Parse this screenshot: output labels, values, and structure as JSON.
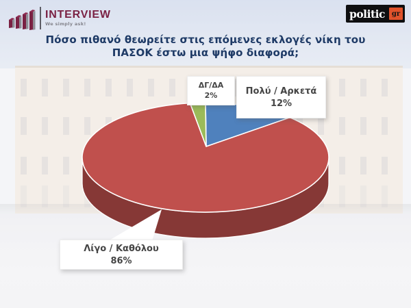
{
  "header": {
    "interview": {
      "brand": "INTERVIEW",
      "tagline": "We simply ask!"
    },
    "politic": {
      "brand": "politic",
      "suffix": "gr"
    }
  },
  "title": {
    "line1": "Πόσο πιθανό θεωρείτε στις επόμενες εκλογές νίκη του",
    "line2": "ΠΑΣΟΚ έστω μια ψήφο διαφορά;"
  },
  "chart_data": {
    "type": "pie",
    "style": "3d",
    "title": "Πόσο πιθανό θεωρείτε στις επόμενες εκλογές νίκη του ΠΑΣΟΚ έστω μια ψήφο διαφορά;",
    "unit": "%",
    "start_angle_deg": 0,
    "direction": "clockwise",
    "legend_position": "callout-labels",
    "slices": [
      {
        "label": "Πολύ / Αρκετά",
        "value": 12,
        "pct_label": "12%",
        "color": "#4F81BD"
      },
      {
        "label": "Λίγο / Καθόλου",
        "value": 86,
        "pct_label": "86%",
        "color": "#C0504D"
      },
      {
        "label": "ΔΓ/ΔΑ",
        "value": 2,
        "pct_label": "2%",
        "color": "#9BBB59"
      }
    ]
  },
  "colors": {
    "title_text": "#1E3A66",
    "label_text": "#454545",
    "pie_side": "#8A3A37",
    "slice_outline": "#FFFFFF",
    "brand_maroon": "#7A2143",
    "politic_orange": "#E0522B",
    "politic_black": "#0E0E10"
  }
}
